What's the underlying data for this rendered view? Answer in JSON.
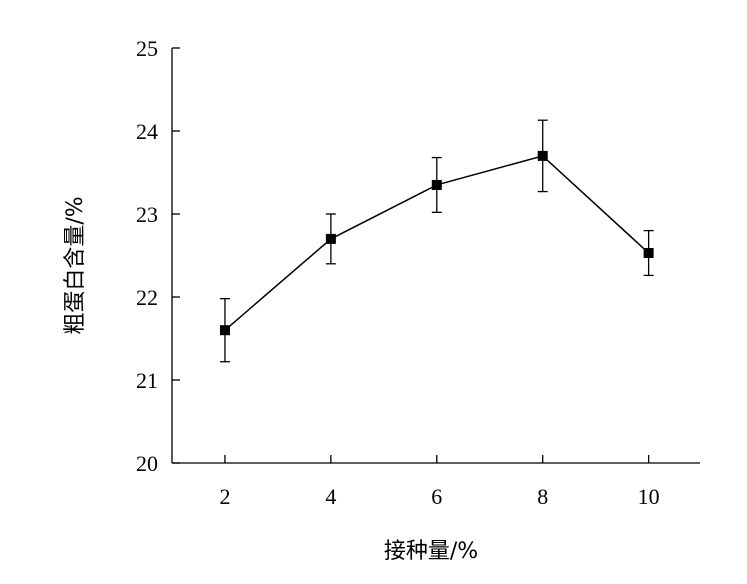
{
  "chart_data": {
    "type": "line",
    "x": [
      2,
      4,
      6,
      8,
      10
    ],
    "series": [
      {
        "values": [
          21.6,
          22.7,
          23.35,
          23.7,
          22.53
        ],
        "error": [
          0.38,
          0.3,
          0.33,
          0.43,
          0.27
        ]
      }
    ],
    "xlabel": "接种量/%",
    "ylabel": "粗蛋白含量/%",
    "xticks": [
      "2",
      "4",
      "6",
      "8",
      "10"
    ],
    "yticks": [
      "20",
      "21",
      "22",
      "23",
      "24",
      "25"
    ],
    "xlim": [
      1,
      10.97
    ],
    "ylim": [
      20,
      25
    ],
    "grid": false,
    "marker": "square",
    "color": "#000000"
  }
}
